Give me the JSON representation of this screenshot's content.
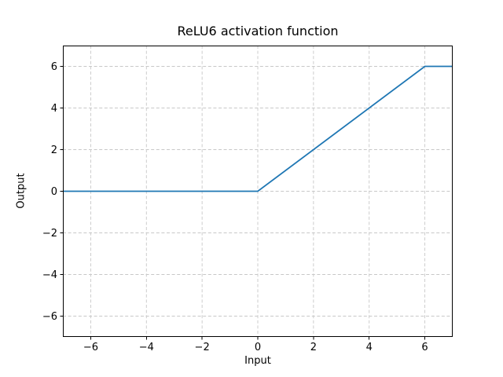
{
  "chart_data": {
    "type": "line",
    "title": "ReLU6 activation function",
    "xlabel": "Input",
    "ylabel": "Output",
    "xlim": [
      -7,
      7
    ],
    "ylim": [
      -7,
      7
    ],
    "x_ticks": [
      -6,
      -4,
      -2,
      0,
      2,
      4,
      6
    ],
    "y_ticks": [
      -6,
      -4,
      -2,
      0,
      2,
      4,
      6
    ],
    "x_tick_labels": [
      "−6",
      "−4",
      "−2",
      "0",
      "2",
      "4",
      "6"
    ],
    "y_tick_labels": [
      "−6",
      "−4",
      "−2",
      "0",
      "2",
      "4",
      "6"
    ],
    "grid": true,
    "grid_linestyle": "dashed",
    "legend_position": "none",
    "colors": {
      "line": "#1f77b4",
      "grid": "#c8c8c8",
      "spine": "#000000",
      "text": "#000000",
      "background": "#ffffff"
    },
    "series": [
      {
        "name": "ReLU6",
        "formula": "min(max(0, x), 6)",
        "points": [
          [
            -7,
            0
          ],
          [
            0,
            0
          ],
          [
            6,
            6
          ],
          [
            7,
            6
          ]
        ]
      }
    ]
  }
}
